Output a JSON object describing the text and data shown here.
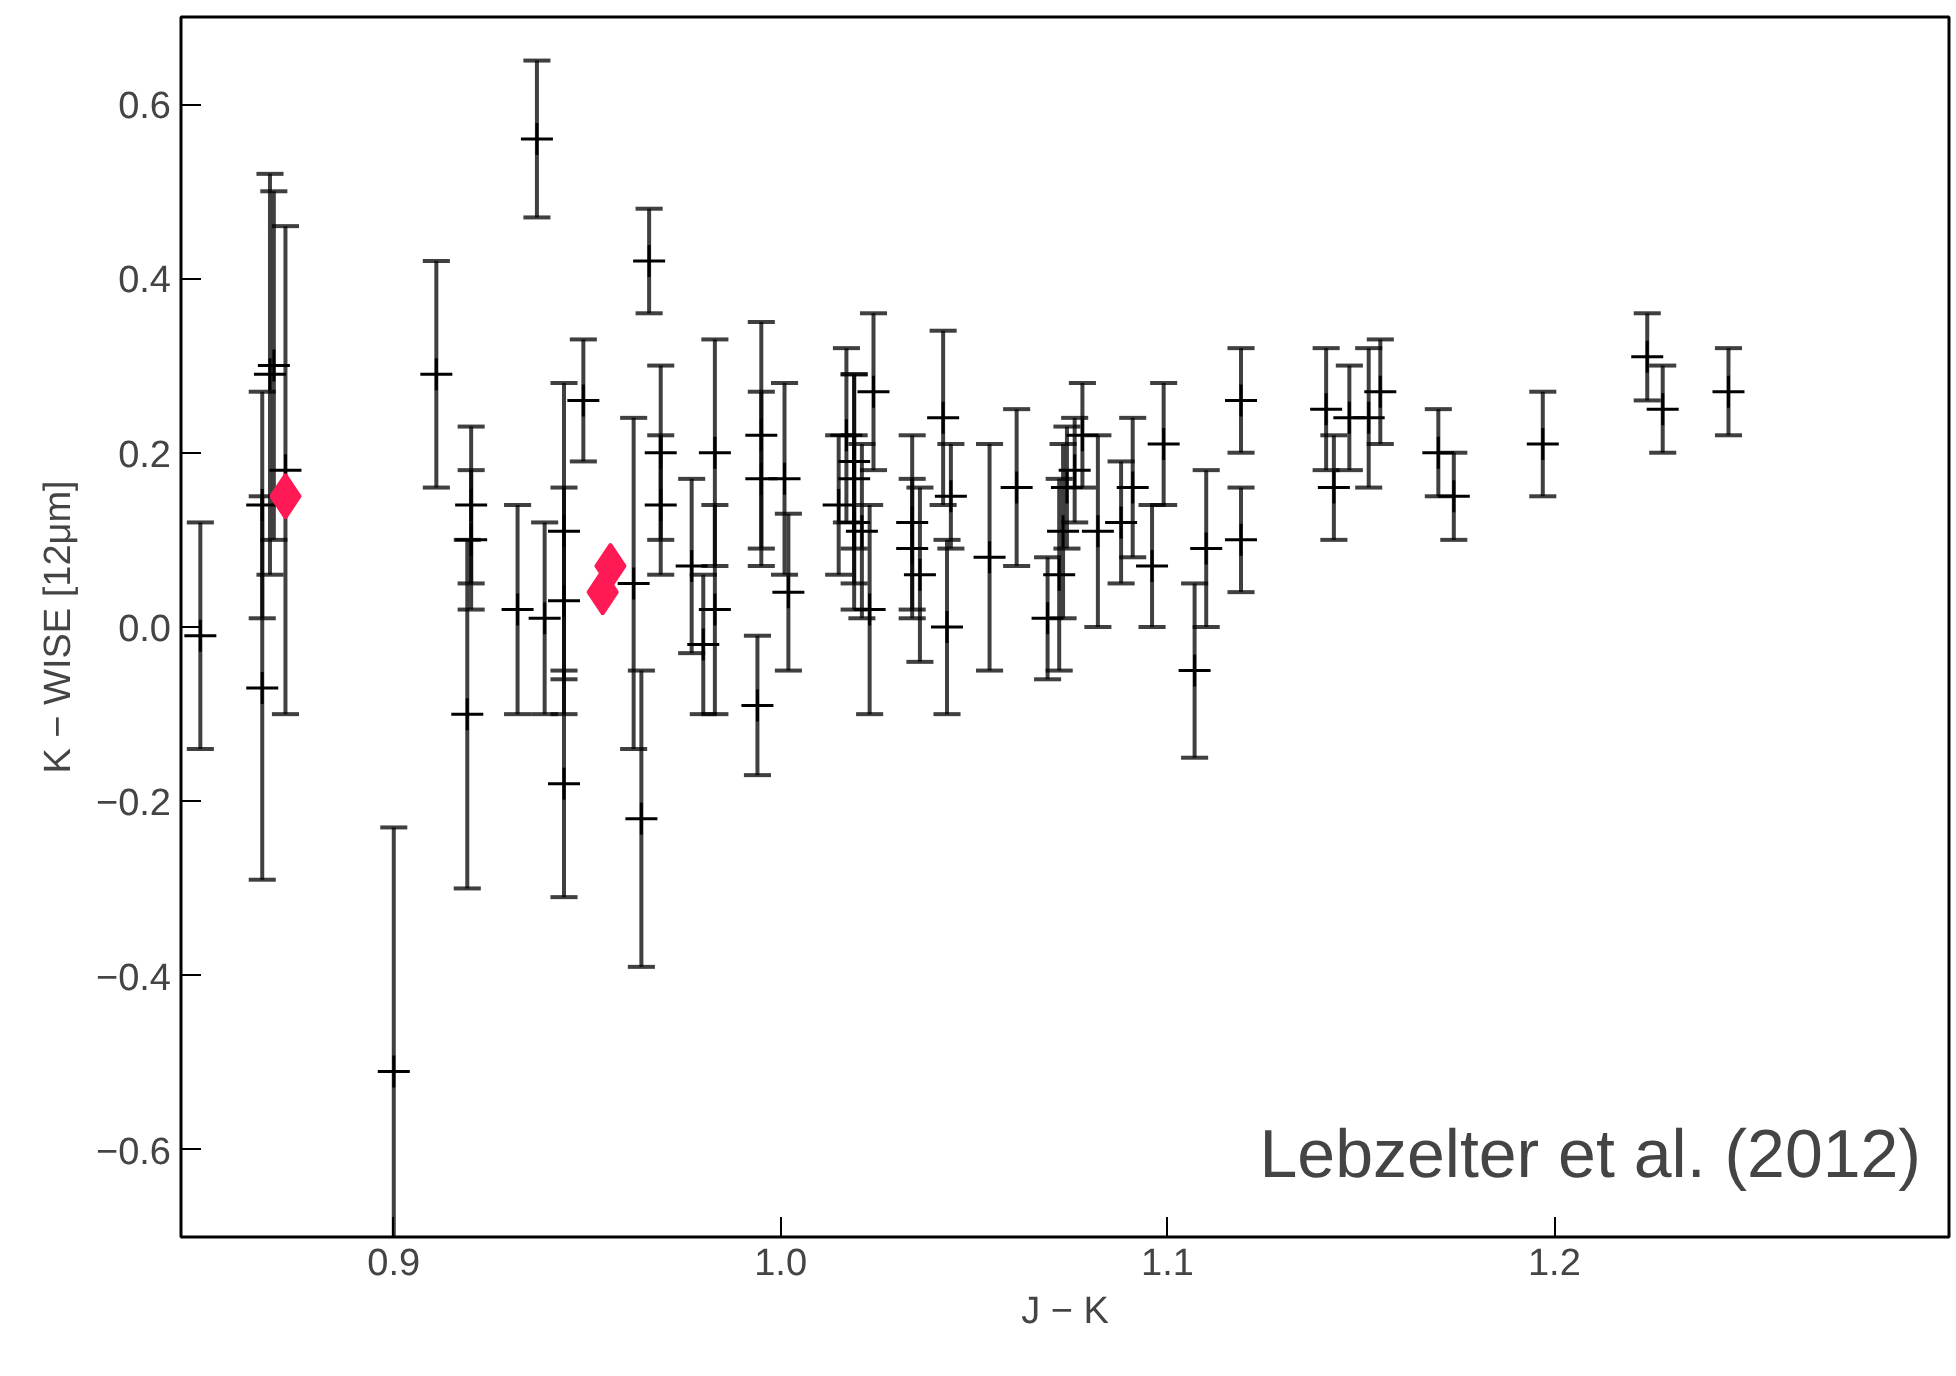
{
  "chart_data": {
    "type": "scatter",
    "xlabel": "J − K",
    "ylabel": "K − WISE [12μm]",
    "xlim": [
      0.845,
      1.302
    ],
    "ylim": [
      -0.7,
      0.7
    ],
    "xticks": [
      0.9,
      {
        "value": 1.0,
        "label": "1.0"
      },
      1.1,
      1.2
    ],
    "yticks": [
      {
        "value": -0.6,
        "label": "−0.6"
      },
      {
        "value": -0.4,
        "label": "−0.4"
      },
      {
        "value": -0.2,
        "label": "−0.2"
      },
      {
        "value": 0.0,
        "label": "0.0"
      },
      0.2,
      0.4,
      0.6
    ],
    "grid": false,
    "annotations": [
      "Lebzelter et al. (2012)"
    ],
    "series": [
      {
        "color": "#000000",
        "marker": "cross",
        "x": [
          0.85,
          0.866,
          0.866,
          0.868,
          0.869,
          0.872,
          0.9,
          0.911,
          0.919,
          0.92,
          0.92,
          0.932,
          0.937,
          0.939,
          0.944,
          0.944,
          0.944,
          0.949,
          0.962,
          0.964,
          0.966,
          0.969,
          0.969,
          0.977,
          0.98,
          0.983,
          0.983,
          0.994,
          0.995,
          0.995,
          1.001,
          1.002,
          1.015,
          1.017,
          1.019,
          1.019,
          1.019,
          1.021,
          1.023,
          1.024,
          1.034,
          1.034,
          1.036,
          1.042,
          1.043,
          1.044,
          1.054,
          1.061,
          1.069,
          1.072,
          1.073,
          1.074,
          1.076,
          1.078,
          1.082,
          1.088,
          1.091,
          1.096,
          1.099,
          1.107,
          1.11,
          1.119,
          1.119,
          1.141,
          1.143,
          1.147,
          1.152,
          1.155,
          1.17,
          1.174,
          1.197,
          1.224,
          1.228,
          1.245
        ],
        "values": [
          -0.01,
          0.14,
          -0.07,
          0.29,
          0.3,
          0.18,
          -0.51,
          0.29,
          -0.1,
          0.14,
          0.1,
          0.02,
          0.56,
          0.01,
          0.11,
          0.03,
          -0.18,
          0.26,
          0.05,
          -0.22,
          0.42,
          0.2,
          0.14,
          0.07,
          -0.02,
          0.2,
          0.02,
          -0.09,
          0.22,
          0.17,
          0.17,
          0.04,
          0.14,
          0.22,
          0.19,
          0.17,
          0.12,
          0.11,
          0.02,
          0.27,
          0.12,
          0.09,
          0.06,
          0.24,
          0.0,
          0.15,
          0.08,
          0.16,
          0.01,
          0.06,
          0.11,
          0.16,
          0.18,
          0.22,
          0.11,
          0.12,
          0.16,
          0.07,
          0.21,
          -0.05,
          0.09,
          0.26,
          0.1,
          0.25,
          0.16,
          0.24,
          0.24,
          0.27,
          0.2,
          0.15,
          0.21,
          0.31,
          0.25,
          0.27
        ],
        "errors": [
          0.13,
          0.13,
          0.22,
          0.23,
          0.2,
          0.28,
          [
            -0.7,
            -0.23
          ],
          0.13,
          0.2,
          0.09,
          0.08,
          0.12,
          0.09,
          0.11,
          0.17,
          0.13,
          0.13,
          0.07,
          0.19,
          0.17,
          0.06,
          0.1,
          0.08,
          0.1,
          0.08,
          0.13,
          0.12,
          0.08,
          0.13,
          0.1,
          0.11,
          0.09,
          0.08,
          0.1,
          0.1,
          0.12,
          0.1,
          0.1,
          0.12,
          0.09,
          0.1,
          0.08,
          0.1,
          0.1,
          0.1,
          0.06,
          0.13,
          0.09,
          0.07,
          0.11,
          0.1,
          0.07,
          0.06,
          0.06,
          0.11,
          0.07,
          0.08,
          0.07,
          0.07,
          0.1,
          0.09,
          0.06,
          0.06,
          0.07,
          0.06,
          0.06,
          0.08,
          0.06,
          0.05,
          0.05,
          0.06,
          0.05,
          0.05,
          0.05
        ]
      },
      {
        "color": "#ff1a55",
        "marker": "diamond",
        "x": [
          0.872,
          0.954,
          0.956
        ],
        "values": [
          0.15,
          0.04,
          0.07
        ]
      }
    ]
  }
}
